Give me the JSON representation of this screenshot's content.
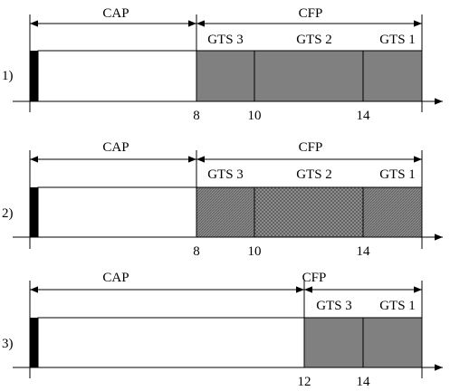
{
  "panels": [
    {
      "row_label": "1)",
      "cap_label": "CAP",
      "cfp_label": "CFP",
      "gts": [
        {
          "label": "GTS 3",
          "pattern": "solid"
        },
        {
          "label": "GTS 2",
          "pattern": "solid"
        },
        {
          "label": "GTS 1",
          "pattern": "solid"
        }
      ],
      "ticks": [
        "8",
        "10",
        "14"
      ]
    },
    {
      "row_label": "2)",
      "cap_label": "CAP",
      "cfp_label": "CFP",
      "gts": [
        {
          "label": "GTS 3",
          "pattern": "fine"
        },
        {
          "label": "GTS 2",
          "pattern": "cross"
        },
        {
          "label": "GTS 1",
          "pattern": "fine"
        }
      ],
      "ticks": [
        "8",
        "10",
        "14"
      ]
    },
    {
      "row_label": "3)",
      "cap_label": "CAP",
      "cfp_label": "CFP",
      "gts": [
        {
          "label": "GTS 3",
          "pattern": "solid"
        },
        {
          "label": "GTS 1",
          "pattern": "solid"
        }
      ],
      "ticks": [
        "12",
        "14"
      ]
    }
  ],
  "colors": {
    "gts_fill": "#808080",
    "beacon": "#000000",
    "line": "#000000"
  }
}
